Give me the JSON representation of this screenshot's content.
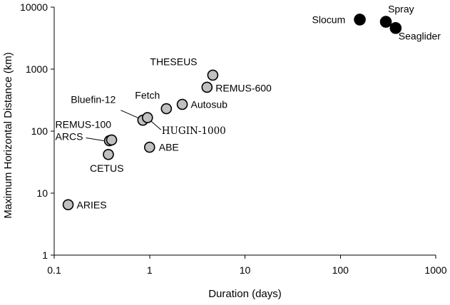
{
  "chart_data": {
    "type": "scatter",
    "xlabel": "Duration (days)",
    "ylabel": "Maximum Horizontal Distance (km)",
    "xscale": "log",
    "yscale": "log",
    "xlim": [
      0.1,
      1000
    ],
    "ylim": [
      1,
      10000
    ],
    "xticks": [
      "0.1",
      "1",
      "10",
      "100",
      "1000"
    ],
    "yticks": [
      "1",
      "10",
      "100",
      "1000",
      "10000"
    ],
    "grid": false,
    "colors": {
      "auv": "#c0c0c0",
      "glider": "#000000",
      "outline": "#000000"
    },
    "points": [
      {
        "label": "ARIES",
        "x": 0.14,
        "y": 6.5,
        "group": "auv"
      },
      {
        "label": "CETUS",
        "x": 0.37,
        "y": 42,
        "group": "auv"
      },
      {
        "label": "ARCS",
        "x": 0.38,
        "y": 70,
        "group": "auv"
      },
      {
        "label": "REMUS-100",
        "x": 0.4,
        "y": 72,
        "group": "auv"
      },
      {
        "label": "ABE",
        "x": 1.0,
        "y": 55,
        "group": "auv"
      },
      {
        "label": "Bluefin-12",
        "x": 0.85,
        "y": 150,
        "group": "auv"
      },
      {
        "label": "HUGIN-1000",
        "x": 0.95,
        "y": 165,
        "group": "auv"
      },
      {
        "label": "Fetch",
        "x": 1.5,
        "y": 230,
        "group": "auv"
      },
      {
        "label": "Autosub",
        "x": 2.2,
        "y": 270,
        "group": "auv"
      },
      {
        "label": "REMUS-600",
        "x": 4.0,
        "y": 510,
        "group": "auv"
      },
      {
        "label": "THESEUS",
        "x": 4.6,
        "y": 800,
        "group": "auv"
      },
      {
        "label": "Slocum",
        "x": 160,
        "y": 6300,
        "group": "glider"
      },
      {
        "label": "Spray",
        "x": 300,
        "y": 5800,
        "group": "glider"
      },
      {
        "label": "Seaglider",
        "x": 380,
        "y": 4600,
        "group": "glider"
      }
    ]
  }
}
